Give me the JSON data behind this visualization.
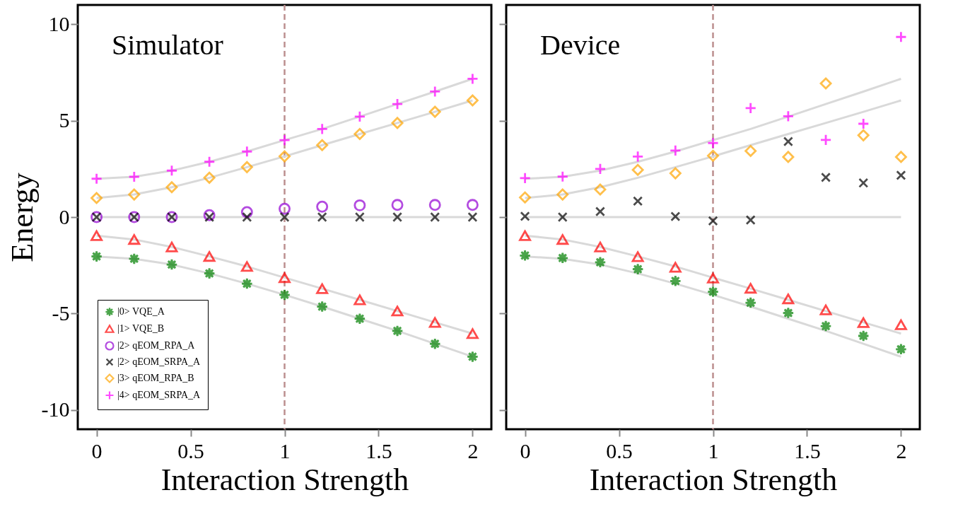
{
  "chart_data": [
    {
      "type": "scatter",
      "title": "Simulator",
      "xlabel": "Interaction Strength",
      "ylabel": "Energy",
      "x": [
        0,
        0.2,
        0.4,
        0.6,
        0.8,
        1,
        1.2,
        1.4,
        1.6,
        1.8,
        2
      ],
      "xlim": [
        -0.1,
        2.1
      ],
      "xticks": [
        0,
        0.5,
        1,
        1.5,
        2
      ],
      "ylim": [
        -11,
        11
      ],
      "yticks": [
        -10,
        -5,
        0,
        5,
        10
      ],
      "grid": false,
      "legend": "bottom left",
      "ref_lines": [
        {
          "axis": "x",
          "value": 1,
          "color": "#bc8f8f",
          "line_style": "dashed"
        }
      ],
      "series": [
        {
          "type": "line",
          "color": "#d9d9d9",
          "marker": "none",
          "values": [
            1.99,
            2.09,
            2.41,
            2.87,
            3.4,
            3.99,
            4.57,
            5.21,
            5.86,
            6.51,
            7.17
          ]
        },
        {
          "type": "line",
          "color": "#d9d9d9",
          "marker": "none",
          "values": [
            0.99,
            1.17,
            1.55,
            2.04,
            2.59,
            3.15,
            3.73,
            4.31,
            4.88,
            5.46,
            6.05
          ]
        },
        {
          "type": "line",
          "color": "#d9d9d9",
          "marker": "none",
          "values": [
            0,
            0,
            0,
            0,
            0,
            0,
            0,
            0,
            0,
            0,
            0
          ]
        },
        {
          "type": "line",
          "color": "#d9d9d9",
          "marker": "none",
          "values": [
            -0.96,
            -1.16,
            -1.55,
            -2.04,
            -2.56,
            -3.14,
            -3.71,
            -4.29,
            -4.87,
            -5.46,
            -6.04
          ]
        },
        {
          "type": "line",
          "color": "#d9d9d9",
          "marker": "none",
          "values": [
            -2.04,
            -2.16,
            -2.46,
            -2.92,
            -3.45,
            -4.03,
            -4.64,
            -5.27,
            -5.9,
            -6.57,
            -7.24
          ]
        },
        {
          "name": "|0> VQE_A",
          "color": "#008000",
          "marker": "star",
          "values": [
            -2.04,
            -2.16,
            -2.46,
            -2.92,
            -3.45,
            -4.03,
            -4.64,
            -5.27,
            -5.9,
            -6.57,
            -7.24
          ]
        },
        {
          "name": "|1> VQE_B",
          "color": "#ff0000",
          "marker": "triangle",
          "values": [
            -0.96,
            -1.16,
            -1.55,
            -2.04,
            -2.56,
            -3.14,
            -3.71,
            -4.29,
            -4.87,
            -5.46,
            -6.04
          ]
        },
        {
          "name": "|2> qEOM_RPA_A",
          "color": "#9400d3",
          "marker": "circle",
          "values": [
            0,
            0,
            0,
            0.1,
            0.26,
            0.43,
            0.54,
            0.61,
            0.63,
            0.63,
            0.63
          ]
        },
        {
          "name": "|2> qEOM_SRPA_A",
          "color": "#000000",
          "marker": "x",
          "values": [
            0,
            0,
            0,
            0,
            0,
            0,
            0,
            0,
            0,
            0,
            0
          ]
        },
        {
          "name": "|3> qEOM_RPA_B",
          "color": "#ffa500",
          "marker": "diamond",
          "values": [
            0.99,
            1.17,
            1.55,
            2.04,
            2.59,
            3.15,
            3.73,
            4.31,
            4.88,
            5.46,
            6.05
          ]
        },
        {
          "name": "|4> qEOM_SRPA_A",
          "color": "#ff00ff",
          "marker": "cross",
          "values": [
            1.99,
            2.09,
            2.41,
            2.87,
            3.4,
            3.99,
            4.57,
            5.21,
            5.86,
            6.51,
            7.17
          ]
        }
      ]
    },
    {
      "type": "scatter",
      "title": "Device",
      "xlabel": "Interaction Strength",
      "x": [
        0,
        0.2,
        0.4,
        0.6,
        0.8,
        1,
        1.2,
        1.4,
        1.6,
        1.8,
        2
      ],
      "xlim": [
        -0.1,
        2.1
      ],
      "xticks": [
        0,
        0.5,
        1,
        1.5,
        2
      ],
      "ylim": [
        -11,
        11
      ],
      "yticks": [
        -10,
        -5,
        0,
        5,
        10
      ],
      "tick_labels": "x",
      "grid": false,
      "legend": false,
      "ref_lines": [
        {
          "axis": "x",
          "value": 1,
          "color": "#bc8f8f",
          "line_style": "dashed"
        }
      ],
      "series": [
        {
          "type": "line",
          "color": "#d9d9d9",
          "marker": "none",
          "values": [
            1.99,
            2.09,
            2.41,
            2.87,
            3.4,
            3.99,
            4.57,
            5.21,
            5.86,
            6.51,
            7.17
          ]
        },
        {
          "type": "line",
          "color": "#d9d9d9",
          "marker": "none",
          "values": [
            0.99,
            1.17,
            1.55,
            2.04,
            2.59,
            3.15,
            3.73,
            4.31,
            4.88,
            5.46,
            6.05
          ]
        },
        {
          "type": "line",
          "color": "#d9d9d9",
          "marker": "none",
          "values": [
            0,
            0,
            0,
            0,
            0,
            0,
            0,
            0,
            0,
            0,
            0
          ]
        },
        {
          "type": "line",
          "color": "#d9d9d9",
          "marker": "none",
          "values": [
            -0.96,
            -1.16,
            -1.55,
            -2.04,
            -2.56,
            -3.14,
            -3.71,
            -4.29,
            -4.87,
            -5.46,
            -6.04
          ]
        },
        {
          "type": "line",
          "color": "#d9d9d9",
          "marker": "none",
          "values": [
            -2.04,
            -2.16,
            -2.46,
            -2.92,
            -3.45,
            -4.03,
            -4.64,
            -5.27,
            -5.9,
            -6.57,
            -7.24
          ]
        },
        {
          "color": "#008000",
          "marker": "star",
          "values": [
            -1.99,
            -2.12,
            -2.34,
            -2.7,
            -3.31,
            -3.87,
            -4.44,
            -4.97,
            -5.65,
            -6.16,
            -6.85
          ]
        },
        {
          "color": "#ff0000",
          "marker": "triangle",
          "values": [
            -0.96,
            -1.16,
            -1.55,
            -2.05,
            -2.6,
            -3.16,
            -3.69,
            -4.24,
            -4.81,
            -5.47,
            -5.58
          ]
        },
        {
          "color": "#000000",
          "marker": "x",
          "values": [
            0.04,
            0,
            0.29,
            0.83,
            0.03,
            -0.2,
            -0.15,
            3.92,
            2.06,
            1.77,
            2.17
          ]
        },
        {
          "color": "#ffa500",
          "marker": "diamond",
          "values": [
            1.02,
            1.17,
            1.43,
            2.45,
            2.27,
            3.18,
            3.43,
            3.12,
            6.93,
            4.24,
            3.12
          ]
        },
        {
          "color": "#ff00ff",
          "marker": "cross",
          "values": [
            2.02,
            2.1,
            2.5,
            3.14,
            3.45,
            3.84,
            5.65,
            5.23,
            4.0,
            4.84,
            9.34
          ]
        }
      ]
    }
  ]
}
